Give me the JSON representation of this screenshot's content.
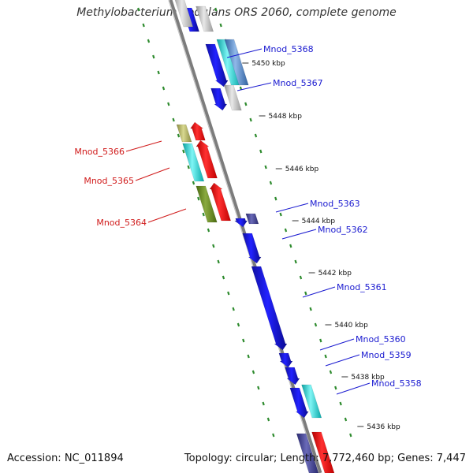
{
  "title": "Methylobacterium nodulans ORS 2060, complete genome",
  "footer": {
    "accession": "Accession: NC_011894",
    "summary": "Topology: circular; Length: 7,772,460 bp; Genes: 7,447"
  },
  "colors": {
    "forward_label": "#1a1ad0",
    "reverse_label": "#d01a1a",
    "backbone": "#8a8a8a",
    "dots": "#2e8b2e"
  },
  "ticks": [
    {
      "label": "5450 kbp"
    },
    {
      "label": "5448 kbp"
    },
    {
      "label": "5446 kbp"
    },
    {
      "label": "5444 kbp"
    },
    {
      "label": "5442 kbp"
    },
    {
      "label": "5440 kbp"
    },
    {
      "label": "5438 kbp"
    },
    {
      "label": "5436 kbp"
    }
  ],
  "genes": [
    {
      "name": "Mnod_5368",
      "strand": "forward"
    },
    {
      "name": "Mnod_5367",
      "strand": "forward"
    },
    {
      "name": "Mnod_5366",
      "strand": "reverse"
    },
    {
      "name": "Mnod_5365",
      "strand": "reverse"
    },
    {
      "name": "Mnod_5364",
      "strand": "reverse"
    },
    {
      "name": "Mnod_5363",
      "strand": "forward"
    },
    {
      "name": "Mnod_5362",
      "strand": "forward"
    },
    {
      "name": "Mnod_5361",
      "strand": "forward"
    },
    {
      "name": "Mnod_5360",
      "strand": "forward"
    },
    {
      "name": "Mnod_5359",
      "strand": "forward"
    },
    {
      "name": "Mnod_5358",
      "strand": "forward"
    }
  ]
}
